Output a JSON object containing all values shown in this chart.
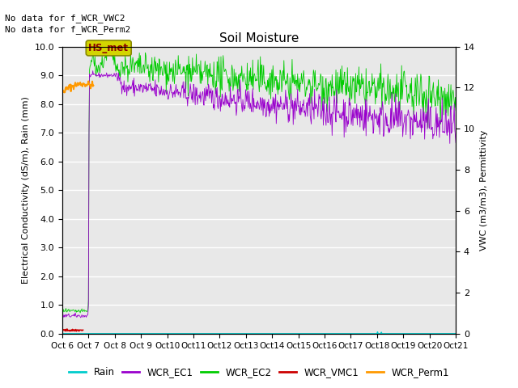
{
  "title": "Soil Moisture",
  "ylabel_left": "Electrical Conductivity (dS/m), Rain (mm)",
  "ylabel_right": "VWC (m3/m3), Permittivity",
  "no_data_text": [
    "No data for f_WCR_VWC2",
    "No data for f_WCR_Perm2"
  ],
  "hs_met_label": "HS_met",
  "xtick_labels": [
    "Oct 6",
    "Oct 7",
    "Oct 8",
    "Oct 9",
    "Oct 10",
    "Oct 11",
    "Oct 12",
    "Oct 13",
    "Oct 14",
    "Oct 15",
    "Oct 16",
    "Oct 17",
    "Oct 18",
    "Oct 19",
    "Oct 20",
    "Oct 21"
  ],
  "xtick_labels_display": [
    "Oct 6",
    "Oct 7",
    "Oct 8",
    "Oct 9",
    "Oct 10",
    "Oct 11",
    "Oct 12",
    "Oct 13",
    "Oct 14",
    "Oct 15",
    "Oct 16",
    "Oct 17",
    "Oct 18",
    "Oct 19",
    "Oct 20",
    "Oct 21"
  ],
  "ylim_left": [
    0.0,
    10.0
  ],
  "ylim_right": [
    0,
    14
  ],
  "yticks_left": [
    0.0,
    1.0,
    2.0,
    3.0,
    4.0,
    5.0,
    6.0,
    7.0,
    8.0,
    9.0,
    10.0
  ],
  "yticks_right": [
    0,
    2,
    4,
    6,
    8,
    10,
    12,
    14
  ],
  "background_color": "#e8e8e8",
  "plot_bg_color": "#e8e8e8",
  "legend_items": [
    "Rain",
    "WCR_EC1",
    "WCR_EC2",
    "WCR_VMC1",
    "WCR_Perm1"
  ],
  "legend_colors": [
    "#00cccc",
    "#9900cc",
    "#00cc00",
    "#cc0000",
    "#ff9900"
  ],
  "grid_color": "#ffffff",
  "seed": 42,
  "n_days": 15,
  "n_pts": 720
}
